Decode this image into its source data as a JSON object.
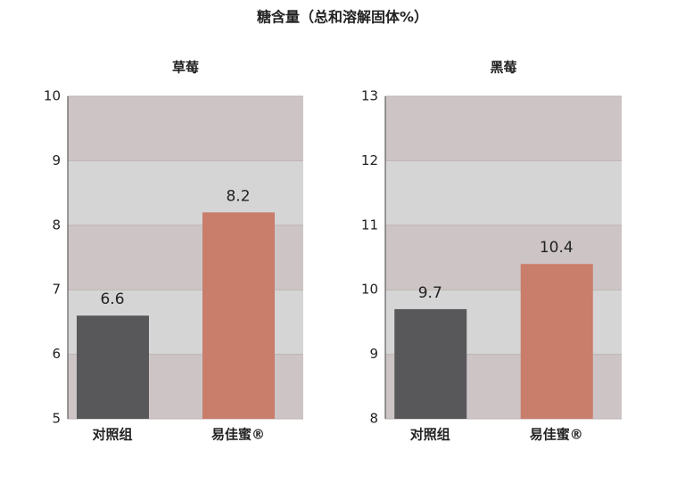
{
  "title": "糖含量（总和溶解固体%）",
  "chart_data": [
    {
      "type": "bar",
      "title": "草莓",
      "categories": [
        "对照组",
        "易佳蜜®"
      ],
      "values": [
        6.6,
        8.2
      ],
      "colors": [
        "#58585a",
        "#c97d6b"
      ],
      "ylim": [
        5,
        10
      ],
      "yticks": [
        5,
        6,
        7,
        8,
        9,
        10
      ]
    },
    {
      "type": "bar",
      "title": "黑莓",
      "categories": [
        "对照组",
        "易佳蜜®"
      ],
      "values": [
        9.7,
        10.4
      ],
      "colors": [
        "#58585a",
        "#c97d6b"
      ],
      "ylim": [
        8,
        13
      ],
      "yticks": [
        8,
        9,
        10,
        11,
        12,
        13
      ]
    }
  ]
}
